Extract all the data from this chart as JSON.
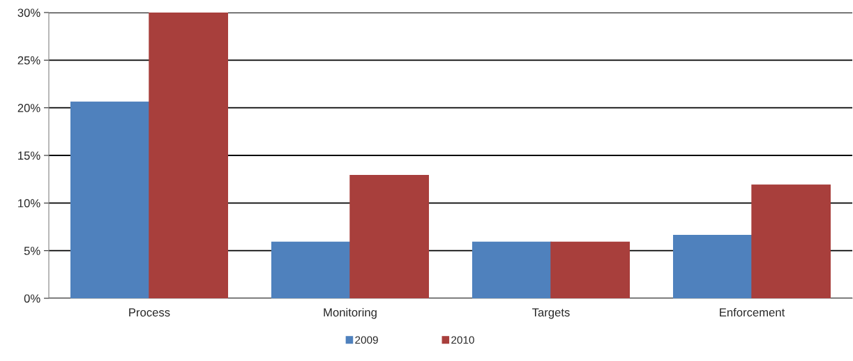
{
  "chart_data": {
    "type": "bar",
    "categories": [
      "Process",
      "Monitoring",
      "Targets",
      "Enforcement"
    ],
    "series": [
      {
        "name": "2009",
        "color": "#4f81bd",
        "values": [
          20.6,
          5.9,
          5.9,
          6.6
        ]
      },
      {
        "name": "2010",
        "color": "#a83f3c",
        "values": [
          30,
          12.9,
          5.9,
          11.9
        ]
      }
    ],
    "ylim": [
      0,
      30
    ],
    "yticks": [
      {
        "value": 0,
        "label": "0%"
      },
      {
        "value": 5,
        "label": "5%"
      },
      {
        "value": 10,
        "label": "10%"
      },
      {
        "value": 15,
        "label": "15%"
      },
      {
        "value": 20,
        "label": "20%"
      },
      {
        "value": 25,
        "label": "25%"
      },
      {
        "value": 30,
        "label": "30%"
      }
    ],
    "grid": "y",
    "legend": "bottom"
  }
}
